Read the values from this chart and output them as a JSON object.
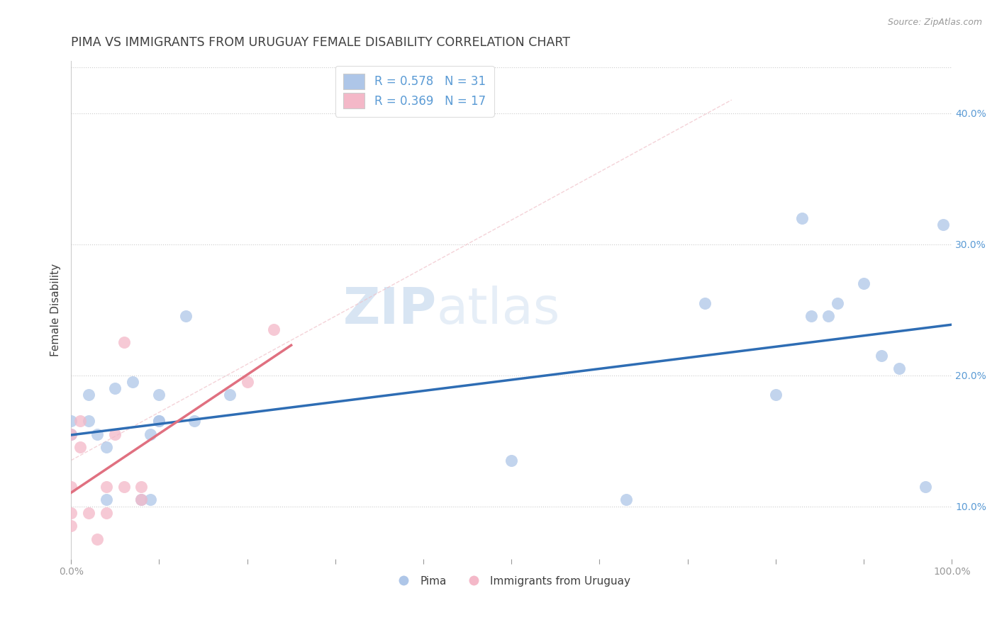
{
  "title": "PIMA VS IMMIGRANTS FROM URUGUAY FEMALE DISABILITY CORRELATION CHART",
  "source": "Source: ZipAtlas.com",
  "ylabel": "Female Disability",
  "xlim": [
    0.0,
    1.0
  ],
  "ylim": [
    0.06,
    0.44
  ],
  "y_ticks": [
    0.1,
    0.2,
    0.3,
    0.4
  ],
  "legend_label1": "Pima",
  "legend_label2": "Immigrants from Uruguay",
  "color_blue": "#aec6e8",
  "color_pink": "#f4b8c8",
  "color_blue_line": "#2e6db4",
  "color_pink_line": "#e07080",
  "color_diag_line": "#f0c0c8",
  "title_color": "#404040",
  "axis_color": "#5b9bd5",
  "watermark_zip": "ZIP",
  "watermark_atlas": "atlas",
  "blue_points_x": [
    0.0,
    0.0,
    0.02,
    0.02,
    0.03,
    0.04,
    0.04,
    0.05,
    0.07,
    0.08,
    0.09,
    0.09,
    0.1,
    0.1,
    0.1,
    0.13,
    0.14,
    0.18,
    0.5,
    0.63,
    0.72,
    0.8,
    0.83,
    0.84,
    0.86,
    0.87,
    0.9,
    0.92,
    0.94,
    0.97,
    0.99
  ],
  "blue_points_y": [
    0.165,
    0.155,
    0.185,
    0.165,
    0.155,
    0.145,
    0.105,
    0.19,
    0.195,
    0.105,
    0.155,
    0.105,
    0.165,
    0.165,
    0.185,
    0.245,
    0.165,
    0.185,
    0.135,
    0.105,
    0.255,
    0.185,
    0.32,
    0.245,
    0.245,
    0.255,
    0.27,
    0.215,
    0.205,
    0.115,
    0.315
  ],
  "pink_points_x": [
    0.0,
    0.0,
    0.0,
    0.0,
    0.01,
    0.01,
    0.02,
    0.03,
    0.04,
    0.04,
    0.05,
    0.06,
    0.06,
    0.08,
    0.08,
    0.2,
    0.23
  ],
  "pink_points_y": [
    0.085,
    0.095,
    0.115,
    0.155,
    0.145,
    0.165,
    0.095,
    0.075,
    0.095,
    0.115,
    0.155,
    0.225,
    0.115,
    0.105,
    0.115,
    0.195,
    0.235
  ]
}
